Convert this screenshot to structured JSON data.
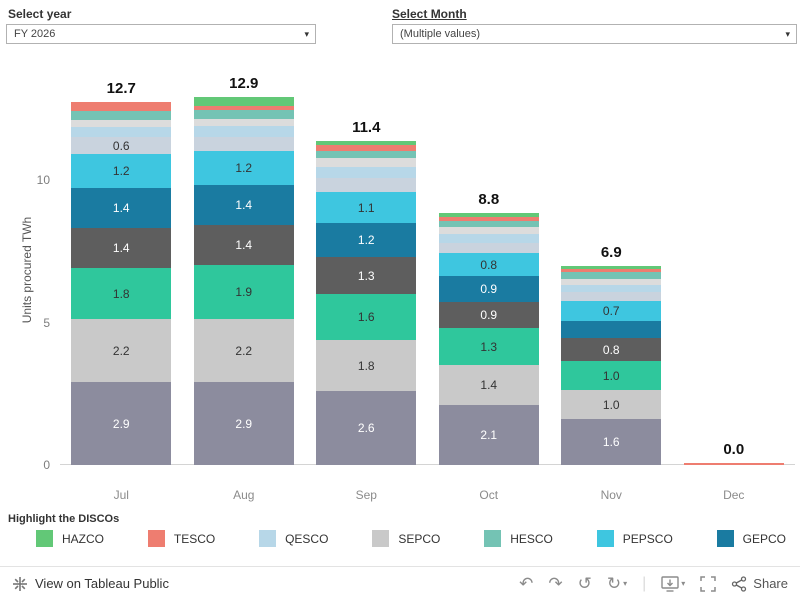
{
  "icons": {
    "caret": "▾",
    "undo": "↶",
    "redo": "↷",
    "reset": "↺",
    "replay": "↻"
  },
  "filters": {
    "year": {
      "title": "Select year",
      "value": "FY 2026"
    },
    "month": {
      "title": "Select Month",
      "value": "(Multiple values)"
    }
  },
  "chart_data": {
    "type": "bar",
    "stacked": true,
    "ylabel": "Units procured TWh",
    "xlabel": "",
    "yticks": [
      0,
      5,
      10
    ],
    "ylim": [
      0,
      13.3
    ],
    "grid": false,
    "categories": [
      "Jul",
      "Aug",
      "Sep",
      "Oct",
      "Nov",
      "Dec"
    ],
    "totals": [
      "12.7",
      "12.9",
      "11.4",
      "8.8",
      "6.9",
      "0.0"
    ],
    "colors": {
      "slate": "#8c8c9e",
      "sepco": "#c9c9c9",
      "emerald": "#2fc79c",
      "darkgray": "#5e5e5e",
      "gepco": "#1a7ba1",
      "pepsco": "#3ec6e0",
      "paleblue": "#c9d3de",
      "qesco": "#b7d7e8",
      "palegray": "#dcdcdc",
      "hesco": "#74c3b4",
      "tesco": "#ee7d70",
      "hazco": "#62c877"
    },
    "bars": [
      {
        "month": "Jul",
        "total": "12.7",
        "segments": [
          {
            "key": "slate",
            "value": 2.9,
            "label": "2.9"
          },
          {
            "key": "sepco",
            "value": 2.2,
            "label": "2.2"
          },
          {
            "key": "emerald",
            "value": 1.8,
            "label": "1.8"
          },
          {
            "key": "darkgray",
            "value": 1.4,
            "label": "1.4"
          },
          {
            "key": "gepco",
            "value": 1.4,
            "label": "1.4"
          },
          {
            "key": "pepsco",
            "value": 1.2,
            "label": "1.2"
          },
          {
            "key": "paleblue",
            "value": 0.6,
            "label": "0.6"
          },
          {
            "key": "qesco",
            "value": 0.35,
            "label": null
          },
          {
            "key": "palegray",
            "value": 0.25,
            "label": null
          },
          {
            "key": "hesco",
            "value": 0.3,
            "label": null
          },
          {
            "key": "tesco",
            "value": 0.3,
            "label": null
          }
        ]
      },
      {
        "month": "Aug",
        "total": "12.9",
        "segments": [
          {
            "key": "slate",
            "value": 2.9,
            "label": "2.9"
          },
          {
            "key": "sepco",
            "value": 2.2,
            "label": "2.2"
          },
          {
            "key": "emerald",
            "value": 1.9,
            "label": "1.9"
          },
          {
            "key": "darkgray",
            "value": 1.4,
            "label": "1.4"
          },
          {
            "key": "gepco",
            "value": 1.4,
            "label": "1.4"
          },
          {
            "key": "pepsco",
            "value": 1.2,
            "label": "1.2"
          },
          {
            "key": "paleblue",
            "value": 0.5,
            "label": null
          },
          {
            "key": "qesco",
            "value": 0.4,
            "label": null
          },
          {
            "key": "palegray",
            "value": 0.25,
            "label": null
          },
          {
            "key": "hesco",
            "value": 0.3,
            "label": null
          },
          {
            "key": "tesco",
            "value": 0.15,
            "label": null
          },
          {
            "key": "hazco",
            "value": 0.3,
            "label": null
          }
        ]
      },
      {
        "month": "Sep",
        "total": "11.4",
        "segments": [
          {
            "key": "slate",
            "value": 2.6,
            "label": "2.6"
          },
          {
            "key": "sepco",
            "value": 1.8,
            "label": "1.8"
          },
          {
            "key": "emerald",
            "value": 1.6,
            "label": "1.6"
          },
          {
            "key": "darkgray",
            "value": 1.3,
            "label": "1.3"
          },
          {
            "key": "gepco",
            "value": 1.2,
            "label": "1.2"
          },
          {
            "key": "pepsco",
            "value": 1.1,
            "label": "1.1"
          },
          {
            "key": "paleblue",
            "value": 0.5,
            "label": null
          },
          {
            "key": "qesco",
            "value": 0.4,
            "label": null
          },
          {
            "key": "palegray",
            "value": 0.3,
            "label": null
          },
          {
            "key": "hesco",
            "value": 0.25,
            "label": null
          },
          {
            "key": "tesco",
            "value": 0.2,
            "label": null
          },
          {
            "key": "hazco",
            "value": 0.15,
            "label": null
          }
        ]
      },
      {
        "month": "Oct",
        "total": "8.8",
        "segments": [
          {
            "key": "slate",
            "value": 2.1,
            "label": "2.1"
          },
          {
            "key": "sepco",
            "value": 1.4,
            "label": "1.4"
          },
          {
            "key": "emerald",
            "value": 1.3,
            "label": "1.3"
          },
          {
            "key": "darkgray",
            "value": 0.9,
            "label": "0.9"
          },
          {
            "key": "gepco",
            "value": 0.9,
            "label": "0.9"
          },
          {
            "key": "pepsco",
            "value": 0.8,
            "label": "0.8"
          },
          {
            "key": "paleblue",
            "value": 0.35,
            "label": null
          },
          {
            "key": "qesco",
            "value": 0.3,
            "label": null
          },
          {
            "key": "palegray",
            "value": 0.25,
            "label": null
          },
          {
            "key": "hesco",
            "value": 0.2,
            "label": null
          },
          {
            "key": "tesco",
            "value": 0.15,
            "label": null
          },
          {
            "key": "hazco",
            "value": 0.15,
            "label": null
          }
        ]
      },
      {
        "month": "Nov",
        "total": "6.9",
        "segments": [
          {
            "key": "slate",
            "value": 1.6,
            "label": "1.6"
          },
          {
            "key": "sepco",
            "value": 1.0,
            "label": "1.0"
          },
          {
            "key": "emerald",
            "value": 1.0,
            "label": "1.0"
          },
          {
            "key": "darkgray",
            "value": 0.8,
            "label": "0.8"
          },
          {
            "key": "gepco",
            "value": 0.6,
            "label": null
          },
          {
            "key": "pepsco",
            "value": 0.7,
            "label": "0.7"
          },
          {
            "key": "paleblue",
            "value": 0.3,
            "label": null
          },
          {
            "key": "qesco",
            "value": 0.25,
            "label": null
          },
          {
            "key": "palegray",
            "value": 0.2,
            "label": null
          },
          {
            "key": "hesco",
            "value": 0.25,
            "label": null
          },
          {
            "key": "tesco",
            "value": 0.1,
            "label": null
          },
          {
            "key": "hazco",
            "value": 0.1,
            "label": null
          }
        ]
      },
      {
        "month": "Dec",
        "total": "0.0",
        "segments": [
          {
            "key": "tesco",
            "value": 0.05,
            "label": null
          }
        ]
      }
    ]
  },
  "legend": {
    "title": "Highlight the DISCOs",
    "items": [
      {
        "label": "HAZCO",
        "color": "#62c877"
      },
      {
        "label": "TESCO",
        "color": "#ee7d70"
      },
      {
        "label": "QESCO",
        "color": "#b7d7e8"
      },
      {
        "label": "SEPCO",
        "color": "#c9c9c9"
      },
      {
        "label": "HESCO",
        "color": "#74c3b4"
      },
      {
        "label": "PEPSCO",
        "color": "#3ec6e0"
      },
      {
        "label": "GEPCO",
        "color": "#1a7ba1"
      }
    ]
  },
  "toolbar": {
    "view_label": "View on Tableau Public",
    "share_label": "Share"
  }
}
